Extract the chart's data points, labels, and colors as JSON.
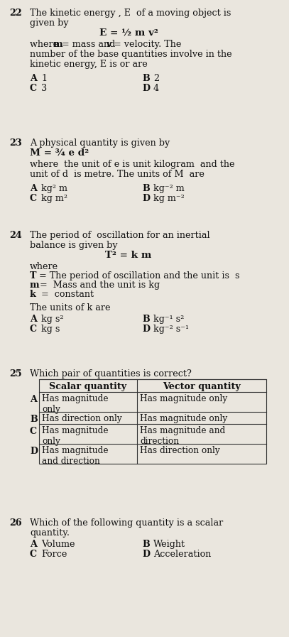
{
  "bg_color": "#eae6de",
  "text_color": "#111111",
  "font_family": "DejaVu Serif",
  "fs": 9.2,
  "questions": {
    "q22": {
      "num": "22",
      "lines": [
        "The kinetic energy , E  of a moving object is",
        "given by"
      ],
      "formula": "E = ½ m v²",
      "body": [
        "where  m = mass and v = velocity. The",
        "number of the base quantities involve in the",
        "kinetic energy, E is or are"
      ],
      "opts": [
        [
          "A",
          "1"
        ],
        [
          "B",
          "2"
        ],
        [
          "C",
          "3"
        ],
        [
          "D",
          "4"
        ]
      ]
    },
    "q23": {
      "num": "23",
      "lines": [
        "A physical quantity is given by"
      ],
      "formula": "M = ¾ e d²",
      "body": [
        "where  the unit of e is unit kilogram  and the",
        "unit of d  is metre. The units of M  are"
      ],
      "opts": [
        [
          "A",
          "kg² m"
        ],
        [
          "B",
          "kg⁻² m"
        ],
        [
          "C",
          "kg m²"
        ],
        [
          "D",
          "kg m⁻²"
        ]
      ]
    },
    "q24": {
      "num": "24",
      "lines": [
        "The period of  oscillation for an inertial",
        "balance is given by"
      ],
      "formula": "T² = k m",
      "body": [
        "where",
        "T = The period of oscillation and the unit is  s",
        "m =  Mass and the unit is kg",
        "k  =  constant",
        "",
        "The units of k are"
      ],
      "bold_body_chars": [
        "T",
        "m",
        "k"
      ],
      "opts": [
        [
          "A",
          "kg s²"
        ],
        [
          "B",
          "kg⁻¹ s²"
        ],
        [
          "C",
          "kg s"
        ],
        [
          "D",
          "kg⁻² s⁻¹"
        ]
      ]
    },
    "q25": {
      "num": "25",
      "lines": [
        "Which pair of quantities is correct?"
      ],
      "col1_header": "Scalar quantity",
      "col2_header": "Vector quantity",
      "rows": [
        [
          "A",
          "Has magnitude\nonly",
          "Has magnitude only"
        ],
        [
          "B",
          "Has direction only",
          "Has magnitude only"
        ],
        [
          "C",
          "Has magnitude\nonly",
          "Has magnitude and\ndirection"
        ],
        [
          "D",
          "Has magnitude\nand direction",
          "Has direction only"
        ]
      ]
    },
    "q26": {
      "num": "26",
      "lines": [
        "Which of the following quantity is a scalar",
        "quantity."
      ],
      "opts": [
        [
          "A",
          "Volume"
        ],
        [
          "B",
          "Weight"
        ],
        [
          "C",
          "Force"
        ],
        [
          "D",
          "Acceleration"
        ]
      ]
    }
  }
}
